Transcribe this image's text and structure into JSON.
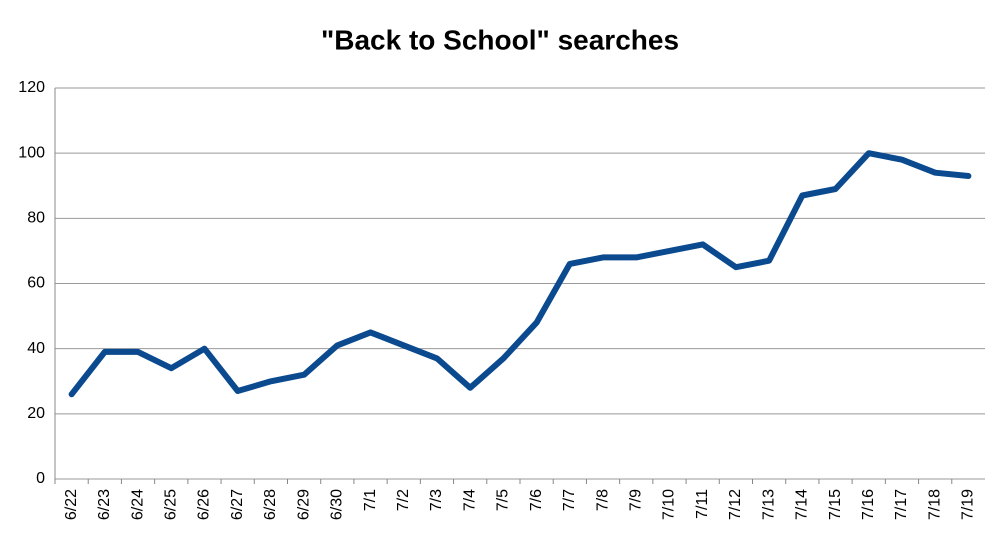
{
  "chart_data": {
    "type": "line",
    "title": "\"Back to School\" searches",
    "categories": [
      "6/22",
      "6/23",
      "6/24",
      "6/25",
      "6/26",
      "6/27",
      "6/28",
      "6/29",
      "6/30",
      "7/1",
      "7/2",
      "7/3",
      "7/4",
      "7/5",
      "7/6",
      "7/7",
      "7/8",
      "7/9",
      "7/10",
      "7/11",
      "7/12",
      "7/13",
      "7/14",
      "7/15",
      "7/16",
      "7/17",
      "7/18",
      "7/19"
    ],
    "series": [
      {
        "name": "searches",
        "color": "#0b4a8f",
        "values": [
          26,
          39,
          39,
          34,
          40,
          27,
          30,
          32,
          41,
          45,
          41,
          37,
          28,
          37,
          48,
          66,
          68,
          68,
          70,
          72,
          65,
          67,
          87,
          89,
          100,
          98,
          94,
          93
        ]
      }
    ],
    "ylim": [
      0,
      120
    ],
    "yticks": [
      0,
      20,
      40,
      60,
      80,
      100,
      120
    ],
    "grid": true
  }
}
